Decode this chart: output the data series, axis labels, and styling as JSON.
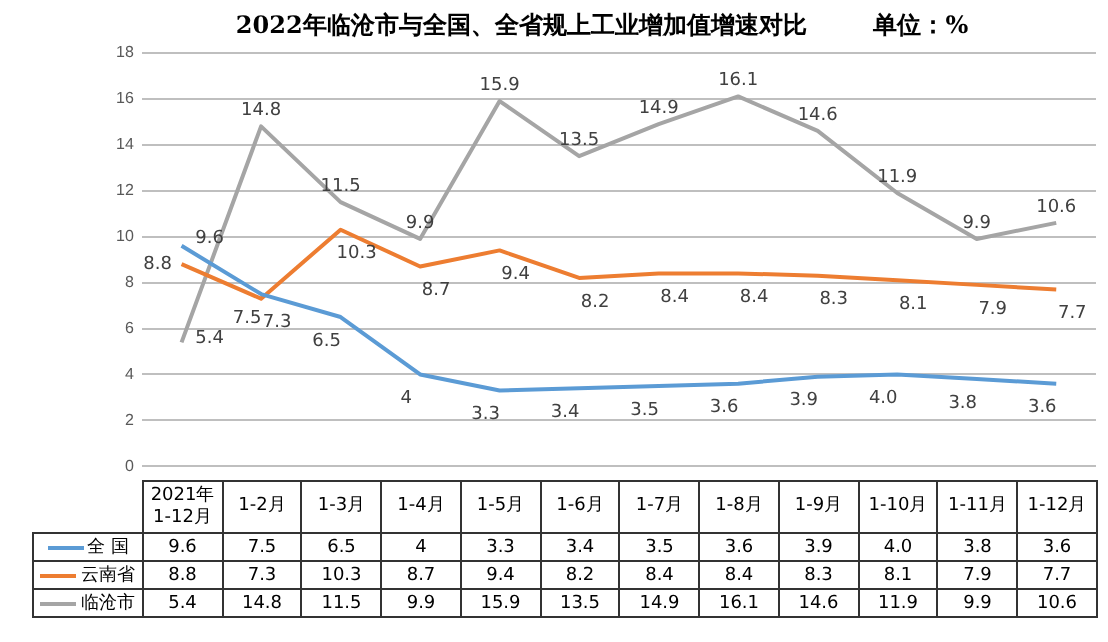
{
  "chart_data": {
    "type": "line",
    "title": "2022年临沧市与全国、全省规上工业增加值增速对比        单位：%",
    "categories": [
      "2021年1-12月",
      "1-2月",
      "1-3月",
      "1-4月",
      "1-5月",
      "1-6月",
      "1-7月",
      "1-8月",
      "1-9月",
      "1-10月",
      "1-11月",
      "1-12月"
    ],
    "series": [
      {
        "name": "全 国",
        "color": "#5b9bd5",
        "values": [
          9.6,
          7.5,
          6.5,
          4,
          3.3,
          3.4,
          3.5,
          3.6,
          3.9,
          4.0,
          3.8,
          3.6
        ],
        "value_labels": [
          "9.6",
          "7.5",
          "6.5",
          "4",
          "3.3",
          "3.4",
          "3.5",
          "3.6",
          "3.9",
          "4.0",
          "3.8",
          "3.6"
        ]
      },
      {
        "name": "云南省",
        "color": "#ed7d31",
        "values": [
          8.8,
          7.3,
          10.3,
          8.7,
          9.4,
          8.2,
          8.4,
          8.4,
          8.3,
          8.1,
          7.9,
          7.7
        ],
        "value_labels": [
          "8.8",
          "7.3",
          "10.3",
          "8.7",
          "9.4",
          "8.2",
          "8.4",
          "8.4",
          "8.3",
          "8.1",
          "7.9",
          "7.7"
        ]
      },
      {
        "name": "临沧市",
        "color": "#a5a5a5",
        "values": [
          5.4,
          14.8,
          11.5,
          9.9,
          15.9,
          13.5,
          14.9,
          16.1,
          14.6,
          11.9,
          9.9,
          10.6
        ],
        "value_labels": [
          "5.4",
          "14.8",
          "11.5",
          "9.9",
          "15.9",
          "13.5",
          "14.9",
          "16.1",
          "14.6",
          "11.9",
          "9.9",
          "10.6"
        ]
      }
    ],
    "ylim": [
      0,
      18
    ],
    "yticks": [
      0,
      2,
      4,
      6,
      8,
      10,
      12,
      14,
      16,
      18
    ],
    "grid": "y",
    "legend": "bottom",
    "marker": "none",
    "line_style": "solid"
  }
}
